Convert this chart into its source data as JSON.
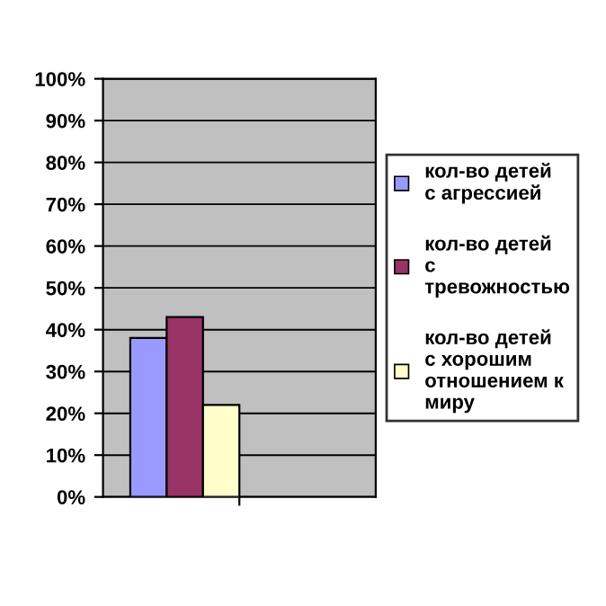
{
  "chart_data": {
    "type": "bar",
    "categories": [
      null
    ],
    "series": [
      {
        "name": "кол-во детей\nс агрессией",
        "color": "#9999ff",
        "values": [
          38
        ]
      },
      {
        "name": "кол-во детей\nс\nтревожностью",
        "color": "#993366",
        "values": [
          43
        ]
      },
      {
        "name": "кол-во детей\nс хорошим\nотношением к\nмиру",
        "color": "#ffffcc",
        "values": [
          22
        ]
      }
    ],
    "ylim": [
      0,
      100
    ],
    "yticks": [
      {
        "value": 0,
        "label": "0%"
      },
      {
        "value": 10,
        "label": "10%"
      },
      {
        "value": 20,
        "label": "20%"
      },
      {
        "value": 30,
        "label": "30%"
      },
      {
        "value": 40,
        "label": "40%"
      },
      {
        "value": 50,
        "label": "50%"
      },
      {
        "value": 60,
        "label": "60%"
      },
      {
        "value": 70,
        "label": "70%"
      },
      {
        "value": 80,
        "label": "80%"
      },
      {
        "value": 90,
        "label": "90%"
      },
      {
        "value": 100,
        "label": "100%"
      }
    ],
    "grid": "y",
    "legend": "right"
  }
}
